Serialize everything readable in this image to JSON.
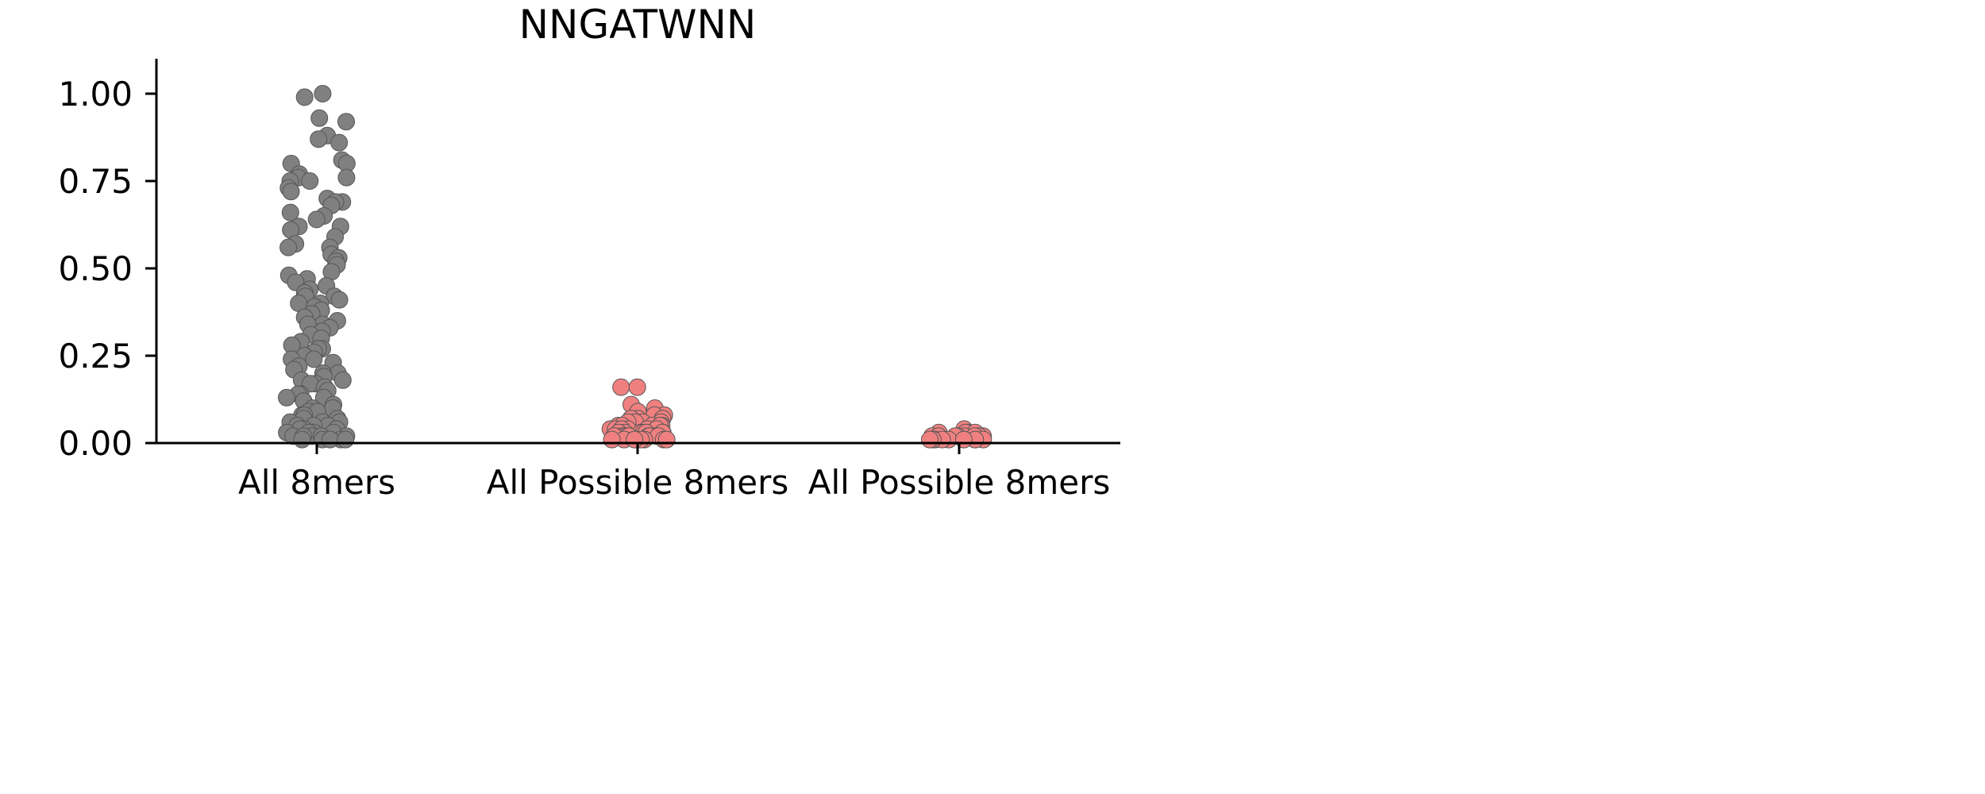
{
  "chart_data": {
    "type": "scatter",
    "subtype": "strip",
    "title": "NNGATWNN",
    "xlabel": "",
    "ylabel": "",
    "ylim": [
      0,
      1.1
    ],
    "yticks": [
      "0.00",
      "0.25",
      "0.50",
      "0.75",
      "1.00"
    ],
    "categories": [
      "All 8mers",
      "All Possible 8mers",
      "All Possible 8mers"
    ],
    "grid": false,
    "legend": "none",
    "series": [
      {
        "category_index": 0,
        "color": "#808080",
        "edge_color": "#555555",
        "max_value": 1.0,
        "values": [
          1.0,
          0.99,
          0.93,
          0.92,
          0.88,
          0.87,
          0.86,
          0.81,
          0.8,
          0.8,
          0.77,
          0.76,
          0.76,
          0.75,
          0.75,
          0.73,
          0.72,
          0.7,
          0.69,
          0.69,
          0.68,
          0.66,
          0.65,
          0.64,
          0.62,
          0.62,
          0.61,
          0.59,
          0.57,
          0.56,
          0.56,
          0.54,
          0.53,
          0.52,
          0.51,
          0.49,
          0.48,
          0.47,
          0.46,
          0.45,
          0.44,
          0.43,
          0.42,
          0.42,
          0.41,
          0.4,
          0.4,
          0.39,
          0.38,
          0.37,
          0.36,
          0.35,
          0.34,
          0.34,
          0.33,
          0.32,
          0.31,
          0.3,
          0.29,
          0.28,
          0.27,
          0.27,
          0.26,
          0.25,
          0.24,
          0.24,
          0.23,
          0.22,
          0.21,
          0.2,
          0.2,
          0.19,
          0.18,
          0.18,
          0.17,
          0.17,
          0.16,
          0.15,
          0.14,
          0.14,
          0.13,
          0.13,
          0.12,
          0.11,
          0.1,
          0.1,
          0.09,
          0.09,
          0.08,
          0.08,
          0.07,
          0.07,
          0.06,
          0.06,
          0.06,
          0.05,
          0.05,
          0.05,
          0.04,
          0.04,
          0.04,
          0.03,
          0.03,
          0.03,
          0.03,
          0.02,
          0.02,
          0.02,
          0.02,
          0.02,
          0.01,
          0.01,
          0.01,
          0.01,
          0.01
        ]
      },
      {
        "category_index": 1,
        "color": "#f08080",
        "edge_color": "#555555",
        "max_value": 0.16,
        "values": [
          0.16,
          0.16,
          0.11,
          0.1,
          0.09,
          0.08,
          0.08,
          0.07,
          0.07,
          0.07,
          0.06,
          0.06,
          0.06,
          0.06,
          0.05,
          0.05,
          0.05,
          0.05,
          0.05,
          0.04,
          0.04,
          0.04,
          0.04,
          0.04,
          0.04,
          0.03,
          0.03,
          0.03,
          0.03,
          0.03,
          0.03,
          0.03,
          0.02,
          0.02,
          0.02,
          0.02,
          0.02,
          0.02,
          0.02,
          0.02,
          0.02,
          0.02,
          0.01,
          0.01,
          0.01,
          0.01,
          0.01,
          0.01,
          0.01,
          0.01
        ]
      },
      {
        "category_index": 2,
        "color": "#f08080",
        "edge_color": "#555555",
        "max_value": 0.04,
        "values": [
          0.04,
          0.03,
          0.03,
          0.03,
          0.03,
          0.02,
          0.02,
          0.02,
          0.02,
          0.02,
          0.02,
          0.02,
          0.02,
          0.01,
          0.01,
          0.01,
          0.01,
          0.01,
          0.01,
          0.01,
          0.01,
          0.01
        ]
      }
    ]
  }
}
